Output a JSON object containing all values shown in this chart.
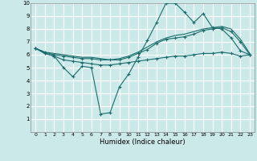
{
  "xlabel": "Humidex (Indice chaleur)",
  "xlim": [
    -0.5,
    23.5
  ],
  "ylim": [
    0,
    10
  ],
  "xticks": [
    0,
    1,
    2,
    3,
    4,
    5,
    6,
    7,
    8,
    9,
    10,
    11,
    12,
    13,
    14,
    15,
    16,
    17,
    18,
    19,
    20,
    21,
    22,
    23
  ],
  "yticks": [
    1,
    2,
    3,
    4,
    5,
    6,
    7,
    8,
    9,
    10
  ],
  "bg_color": "#cce9e9",
  "line_color": "#1a6b6b",
  "grid_color": "#ffffff",
  "series1_x": [
    0,
    1,
    2,
    3,
    4,
    5,
    6,
    7,
    8,
    9,
    10,
    11,
    12,
    13,
    14,
    15,
    16,
    17,
    18,
    19,
    20,
    21,
    22,
    23
  ],
  "series1_y": [
    6.5,
    6.1,
    5.9,
    5.0,
    4.3,
    5.1,
    5.0,
    1.4,
    1.5,
    3.5,
    4.5,
    5.8,
    7.1,
    8.5,
    10.0,
    10.0,
    9.3,
    8.5,
    9.2,
    8.1,
    8.0,
    7.3,
    6.3,
    6.0
  ],
  "series2_x": [
    0,
    1,
    2,
    3,
    4,
    5,
    6,
    7,
    8,
    9,
    10,
    11,
    12,
    13,
    14,
    15,
    16,
    17,
    18,
    19,
    20,
    21,
    22,
    23
  ],
  "series2_y": [
    6.5,
    6.2,
    6.0,
    5.9,
    5.8,
    5.7,
    5.7,
    5.6,
    5.6,
    5.6,
    5.8,
    6.1,
    6.4,
    6.9,
    7.2,
    7.3,
    7.4,
    7.6,
    7.9,
    8.0,
    8.1,
    7.8,
    7.0,
    6.0
  ],
  "series3_x": [
    0,
    1,
    2,
    3,
    4,
    5,
    6,
    7,
    8,
    9,
    10,
    11,
    12,
    13,
    14,
    15,
    16,
    17,
    18,
    19,
    20,
    21,
    22,
    23
  ],
  "series3_y": [
    6.5,
    6.2,
    6.1,
    6.0,
    5.9,
    5.8,
    5.8,
    5.7,
    5.6,
    5.7,
    5.9,
    6.2,
    6.6,
    7.0,
    7.3,
    7.5,
    7.6,
    7.8,
    8.0,
    8.1,
    8.2,
    8.0,
    7.2,
    6.1
  ],
  "series4_x": [
    0,
    1,
    2,
    3,
    4,
    5,
    6,
    7,
    8,
    9,
    10,
    11,
    12,
    13,
    14,
    15,
    16,
    17,
    18,
    19,
    20,
    21,
    22,
    23
  ],
  "series4_y": [
    6.5,
    6.1,
    5.9,
    5.6,
    5.5,
    5.4,
    5.3,
    5.2,
    5.2,
    5.3,
    5.4,
    5.5,
    5.6,
    5.7,
    5.8,
    5.9,
    5.9,
    6.0,
    6.1,
    6.1,
    6.2,
    6.1,
    5.9,
    6.0
  ]
}
